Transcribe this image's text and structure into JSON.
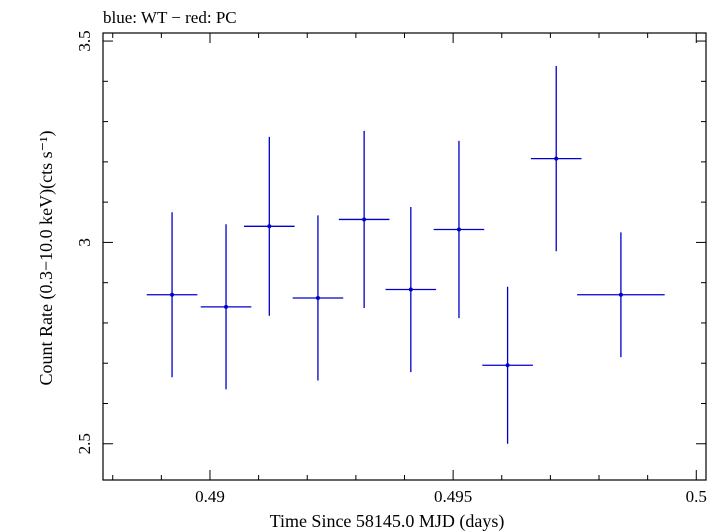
{
  "chart_data": {
    "type": "scatter",
    "title": "blue: WT − red: PC",
    "xlabel": "Time Since 58145.0 MJD (days)",
    "ylabel": "Count Rate (0.3−10.0 keV)(cts s⁻¹)",
    "xlim": [
      0.4878,
      0.5002
    ],
    "ylim": [
      2.41,
      3.52
    ],
    "xticks": [
      0.49,
      0.495,
      0.5
    ],
    "xtick_labels": [
      "0.49",
      "0.495",
      "0.5"
    ],
    "yticks": [
      2.5,
      3.0,
      3.5
    ],
    "ytick_labels": [
      "2.5",
      "3",
      "3.5"
    ],
    "grid": false,
    "series": [
      {
        "color": "#0000cc",
        "points": [
          {
            "x": 0.48922,
            "xerr": 0.00052,
            "y": 2.87,
            "yerr": 0.205
          },
          {
            "x": 0.49033,
            "xerr": 0.00052,
            "y": 2.84,
            "yerr": 0.205
          },
          {
            "x": 0.49122,
            "xerr": 0.00052,
            "y": 3.04,
            "yerr": 0.222
          },
          {
            "x": 0.49222,
            "xerr": 0.00052,
            "y": 2.862,
            "yerr": 0.205
          },
          {
            "x": 0.49317,
            "xerr": 0.00052,
            "y": 3.057,
            "yerr": 0.22
          },
          {
            "x": 0.49413,
            "xerr": 0.00052,
            "y": 2.883,
            "yerr": 0.205
          },
          {
            "x": 0.49512,
            "xerr": 0.00052,
            "y": 3.032,
            "yerr": 0.22
          },
          {
            "x": 0.49612,
            "xerr": 0.00052,
            "y": 2.695,
            "yerr": 0.195
          },
          {
            "x": 0.49712,
            "xerr": 0.00052,
            "y": 3.208,
            "yerr": 0.23
          },
          {
            "x": 0.49845,
            "xerr": 0.0009,
            "y": 2.87,
            "yerr": 0.155
          }
        ]
      }
    ]
  }
}
